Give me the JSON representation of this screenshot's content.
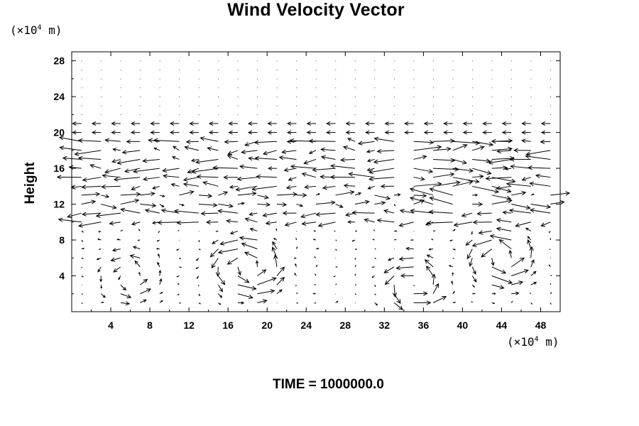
{
  "chart_data": {
    "type": "vector-field",
    "title": "Wind Velocity Vector",
    "ylabel": "Height",
    "y_unit_prefix": "(×10",
    "y_unit_exp": "4",
    "y_unit_suffix": " m)",
    "x_unit_prefix": "(×10",
    "x_unit_exp": "4",
    "x_unit_suffix": " m)",
    "xlim": [
      0,
      50
    ],
    "ylim": [
      0,
      29
    ],
    "x_ticks": [
      4,
      8,
      12,
      16,
      20,
      24,
      28,
      32,
      36,
      40,
      44,
      48
    ],
    "y_ticks": [
      4,
      8,
      12,
      16,
      20,
      24,
      28
    ],
    "x_tick_labels": [
      "4",
      "8",
      "12",
      "16",
      "20",
      "24",
      "28",
      "32",
      "36",
      "40",
      "44",
      "48"
    ],
    "y_tick_labels": [
      "4",
      "8",
      "12",
      "16",
      "20",
      "24",
      "28"
    ],
    "grid": false,
    "grid_x_spacing": 2,
    "grid_y_spacing": 1,
    "vector_scale_note": "max arrow about 4 x-units",
    "features": [
      {
        "name": "jet-westward",
        "y": [
          16,
          19
        ]
      },
      {
        "name": "jet-eastward",
        "y": [
          10,
          13
        ]
      },
      {
        "name": "vortex",
        "center": [
          18,
          5
        ]
      },
      {
        "name": "vortex",
        "center": [
          35,
          3
        ]
      },
      {
        "name": "vortex",
        "center": [
          44,
          6
        ]
      }
    ]
  },
  "time_label": "TIME = 1000000.0",
  "colors": {
    "background": "#ffffff",
    "ink": "#000000"
  }
}
